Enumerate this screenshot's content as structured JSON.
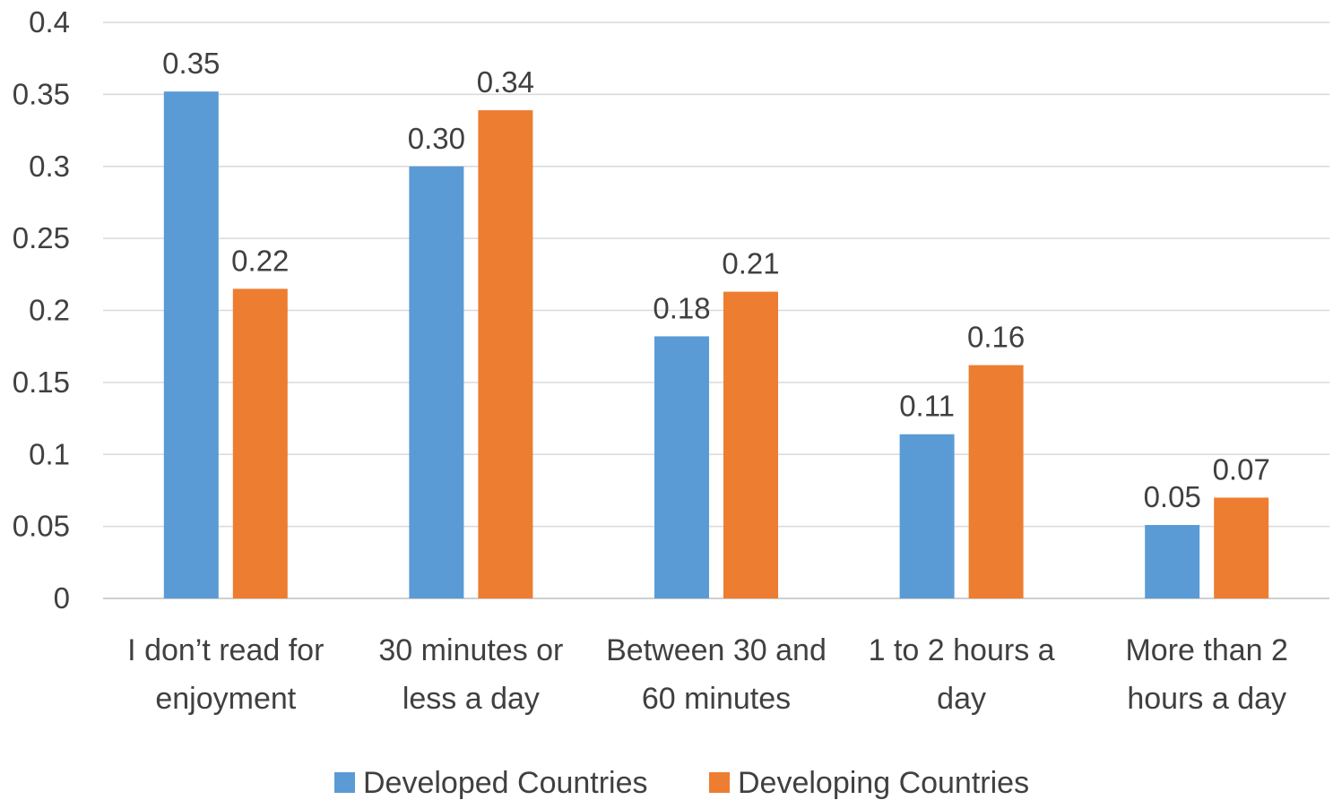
{
  "chart_data": {
    "type": "bar",
    "categories": [
      [
        "I don’t read for",
        "enjoyment"
      ],
      [
        "30 minutes or",
        "less a day"
      ],
      [
        "Between 30 and",
        "60 minutes"
      ],
      [
        "1 to 2 hours a",
        "day"
      ],
      [
        "More than 2",
        "hours a day"
      ]
    ],
    "series": [
      {
        "name": "Developed Countries",
        "color": "#5B9BD5",
        "values": [
          0.352,
          0.3,
          0.182,
          0.114,
          0.051
        ],
        "labels": [
          "0.35",
          "0.30",
          "0.18",
          "0.11",
          "0.05"
        ]
      },
      {
        "name": "Developing Countries",
        "color": "#ED7D31",
        "values": [
          0.215,
          0.339,
          0.213,
          0.162,
          0.07
        ],
        "labels": [
          "0.22",
          "0.34",
          "0.21",
          "0.16",
          "0.07"
        ]
      }
    ],
    "yticks": [
      "0",
      "0.05",
      "0.1",
      "0.15",
      "0.2",
      "0.25",
      "0.3",
      "0.35",
      "0.4"
    ],
    "ylim": [
      0,
      0.4
    ],
    "grid": true,
    "legend": "bottom",
    "title": "",
    "xlabel": "",
    "ylabel": ""
  }
}
